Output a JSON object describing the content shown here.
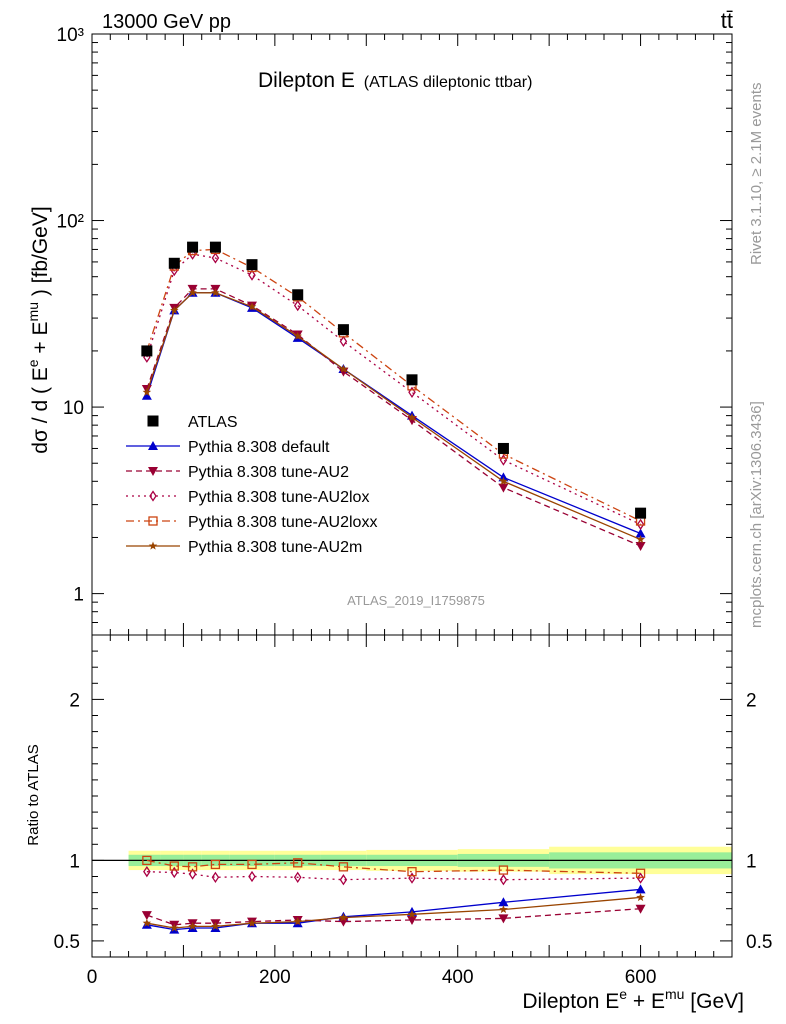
{
  "header": {
    "left": "13000 GeV pp",
    "right": "tt̄"
  },
  "side_labels": {
    "rivet": "Rivet 3.1.10, ≥ 2.1M events",
    "mcplots": "mcplots.cern.ch [arXiv:1306.3436]"
  },
  "chart_data": [
    {
      "type": "line",
      "panel": "main",
      "title_main": "Dilepton E",
      "title_sub": "(ATLAS dileptonic ttbar)",
      "watermark": "ATLAS_2019_I1759875",
      "ylabel": "dσ / d ( E^e + E^mu ) [fb/GeV]",
      "yscale": "log",
      "ylim": [
        0.6,
        1000
      ],
      "xlim": [
        0,
        700
      ],
      "yticks": [
        1,
        10,
        100,
        1000
      ],
      "ytick_labels": [
        "1",
        "10",
        "10²",
        "10³"
      ],
      "legend_position": "lower-left",
      "x": [
        60,
        90,
        110,
        135,
        175,
        225,
        275,
        350,
        450,
        600
      ],
      "series": [
        {
          "name": "ATLAS",
          "color": "#000000",
          "marker": "square-filled",
          "line": "none",
          "values": [
            20,
            59,
            72,
            72,
            58,
            40,
            26,
            14,
            6.0,
            2.7
          ]
        },
        {
          "name": "Pythia 8.308 default",
          "color": "#0000cc",
          "marker": "triangle-up",
          "line": "solid",
          "values": [
            11.5,
            33,
            41,
            41,
            34,
            23.5,
            16,
            9.0,
            4.2,
            2.1
          ]
        },
        {
          "name": "Pythia 8.308 tune-AU2",
          "color": "#990033",
          "marker": "triangle-down",
          "line": "dashed",
          "values": [
            12.5,
            34,
            43,
            43,
            35,
            24.5,
            15.5,
            8.5,
            3.7,
            1.8
          ]
        },
        {
          "name": "Pythia 8.308 tune-AU2lox",
          "color": "#aa0044",
          "marker": "diamond-open",
          "line": "dotted",
          "values": [
            18.5,
            54,
            66,
            63,
            51,
            35,
            22.5,
            12,
            5.2,
            2.35
          ]
        },
        {
          "name": "Pythia 8.308 tune-AU2loxx",
          "color": "#cc4411",
          "marker": "square-open",
          "line": "dashdot",
          "values": [
            20,
            57,
            69,
            70,
            56,
            39,
            25,
            13,
            5.6,
            2.45
          ]
        },
        {
          "name": "Pythia 8.308 tune-AU2m",
          "color": "#994400",
          "marker": "star",
          "line": "solid",
          "values": [
            12,
            33,
            41,
            41,
            34.5,
            24,
            16,
            8.8,
            4.0,
            1.95
          ]
        }
      ]
    },
    {
      "type": "line",
      "panel": "ratio",
      "ylabel": "Ratio to ATLAS",
      "xlabel": "Dilepton E^e + E^mu [GeV]",
      "ylim": [
        0.4,
        2.4
      ],
      "xlim": [
        0,
        700
      ],
      "yticks": [
        0.5,
        1,
        2
      ],
      "ytick_labels": [
        "0.5",
        "1",
        "2"
      ],
      "xticks": [
        0,
        200,
        400,
        600
      ],
      "xtick_labels": [
        "0",
        "200",
        "400",
        "600"
      ],
      "x": [
        60,
        90,
        110,
        135,
        175,
        225,
        275,
        350,
        450,
        600
      ],
      "uncertainty_bins": [
        40,
        75,
        100,
        120,
        150,
        200,
        250,
        300,
        400,
        500,
        700
      ],
      "uncertainty_inner": [
        0.035,
        0.035,
        0.035,
        0.035,
        0.035,
        0.035,
        0.035,
        0.035,
        0.04,
        0.05
      ],
      "uncertainty_outer": [
        0.06,
        0.06,
        0.06,
        0.06,
        0.06,
        0.06,
        0.06,
        0.065,
        0.07,
        0.085
      ],
      "series": [
        {
          "name": "Pythia 8.308 default",
          "color": "#0000cc",
          "marker": "triangle-up",
          "line": "solid",
          "values": [
            0.6,
            0.57,
            0.58,
            0.58,
            0.61,
            0.61,
            0.65,
            0.68,
            0.74,
            0.82
          ]
        },
        {
          "name": "Pythia 8.308 tune-AU2",
          "color": "#990033",
          "marker": "triangle-down",
          "line": "dashed",
          "values": [
            0.66,
            0.6,
            0.61,
            0.61,
            0.62,
            0.63,
            0.62,
            0.63,
            0.64,
            0.7
          ]
        },
        {
          "name": "Pythia 8.308 tune-AU2lox",
          "color": "#aa0044",
          "marker": "diamond-open",
          "line": "dotted",
          "values": [
            0.93,
            0.925,
            0.915,
            0.895,
            0.9,
            0.895,
            0.88,
            0.89,
            0.88,
            0.89
          ]
        },
        {
          "name": "Pythia 8.308 tune-AU2loxx",
          "color": "#cc4411",
          "marker": "square-open",
          "line": "dashdot",
          "values": [
            1.0,
            0.965,
            0.96,
            0.975,
            0.975,
            0.985,
            0.96,
            0.93,
            0.94,
            0.92
          ]
        },
        {
          "name": "Pythia 8.308 tune-AU2m",
          "color": "#994400",
          "marker": "star",
          "line": "solid",
          "values": [
            0.61,
            0.58,
            0.59,
            0.59,
            0.61,
            0.62,
            0.645,
            0.665,
            0.695,
            0.77
          ]
        }
      ]
    }
  ]
}
